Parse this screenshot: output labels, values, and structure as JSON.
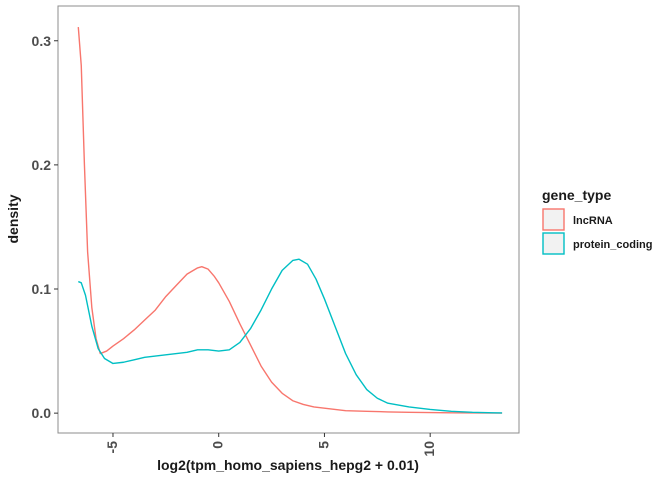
{
  "chart_data": {
    "type": "line",
    "title": "",
    "xlabel": "log2(tpm_homo_sapiens_hepg2 + 0.01)",
    "ylabel": "density",
    "xlim": [
      -7.6,
      14.2
    ],
    "ylim": [
      -0.016,
      0.328
    ],
    "x_ticks": [
      -5,
      0,
      5,
      10
    ],
    "x_tick_labels": [
      "-5",
      "0",
      "5",
      "10"
    ],
    "y_ticks": [
      0.0,
      0.1,
      0.2,
      0.3
    ],
    "y_tick_labels": [
      "0.0",
      "0.1",
      "0.2",
      "0.3"
    ],
    "grid": false,
    "legend": {
      "title": "gene_type",
      "position": "right"
    },
    "series": [
      {
        "name": "lncRNA",
        "color": "#F8766D",
        "x": [
          -6.64,
          -6.5,
          -6.35,
          -6.2,
          -6.0,
          -5.8,
          -5.6,
          -5.3,
          -5.0,
          -4.5,
          -4.0,
          -3.5,
          -3.0,
          -2.5,
          -2.0,
          -1.5,
          -1.0,
          -0.8,
          -0.5,
          -0.2,
          0.0,
          0.5,
          1.0,
          1.5,
          2.0,
          2.5,
          3.0,
          3.5,
          4.0,
          4.5,
          5.0,
          6.0,
          7.0,
          8.0,
          9.0,
          10.0,
          11.0,
          12.0,
          13.0,
          13.4
        ],
        "y": [
          0.311,
          0.28,
          0.2,
          0.13,
          0.085,
          0.06,
          0.048,
          0.05,
          0.054,
          0.06,
          0.067,
          0.075,
          0.083,
          0.094,
          0.103,
          0.112,
          0.117,
          0.118,
          0.116,
          0.11,
          0.105,
          0.09,
          0.072,
          0.055,
          0.038,
          0.025,
          0.016,
          0.01,
          0.007,
          0.005,
          0.004,
          0.002,
          0.0015,
          0.001,
          0.0007,
          0.0005,
          0.0003,
          0.0002,
          0.0001,
          0.0001
        ]
      },
      {
        "name": "protein_coding",
        "color": "#00BFC4",
        "x": [
          -6.64,
          -6.5,
          -6.3,
          -6.0,
          -5.7,
          -5.4,
          -5.0,
          -4.5,
          -4.0,
          -3.5,
          -3.0,
          -2.5,
          -2.0,
          -1.5,
          -1.0,
          -0.5,
          0.0,
          0.5,
          1.0,
          1.5,
          2.0,
          2.5,
          3.0,
          3.5,
          3.8,
          4.2,
          4.6,
          5.0,
          5.5,
          6.0,
          6.5,
          7.0,
          7.5,
          8.0,
          9.0,
          10.0,
          11.0,
          12.0,
          13.0,
          13.4
        ],
        "y": [
          0.106,
          0.105,
          0.095,
          0.07,
          0.052,
          0.044,
          0.04,
          0.041,
          0.043,
          0.045,
          0.046,
          0.047,
          0.048,
          0.049,
          0.051,
          0.051,
          0.05,
          0.051,
          0.057,
          0.068,
          0.083,
          0.1,
          0.115,
          0.123,
          0.124,
          0.12,
          0.108,
          0.092,
          0.07,
          0.048,
          0.031,
          0.019,
          0.012,
          0.008,
          0.005,
          0.003,
          0.0015,
          0.0007,
          0.0003,
          0.0002
        ]
      }
    ]
  }
}
